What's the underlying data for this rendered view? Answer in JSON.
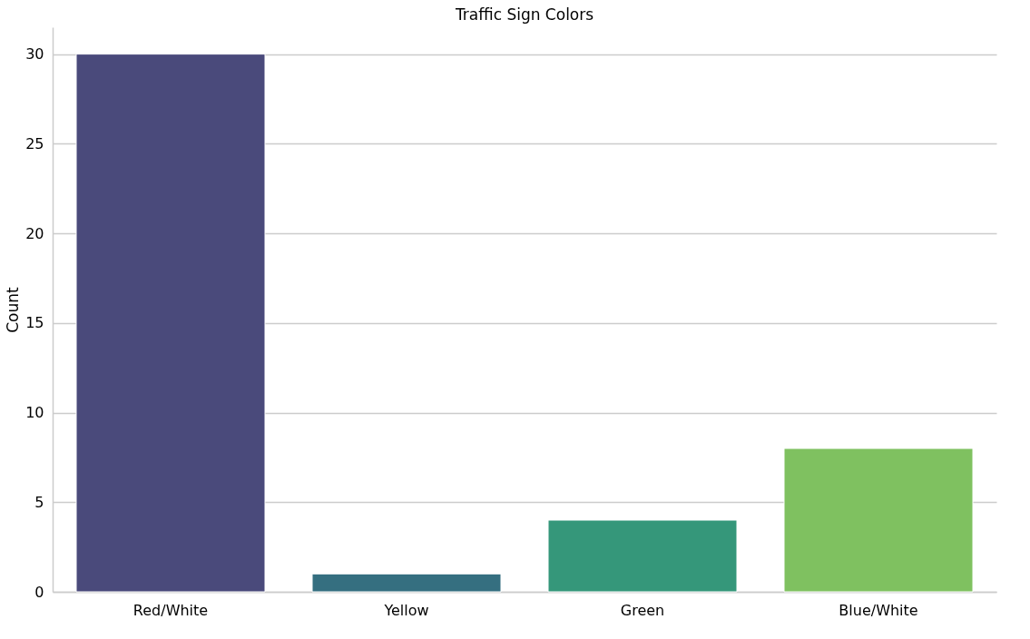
{
  "chart_data": {
    "type": "bar",
    "title": "Traffic Sign Colors",
    "ylabel": "Count",
    "categories": [
      "Red/White",
      "Yellow",
      "Green",
      "Blue/White"
    ],
    "values": [
      30,
      1,
      4,
      8
    ],
    "colors": [
      "#4a4a7b",
      "#356f80",
      "#35977a",
      "#7fc160"
    ],
    "ylim": [
      0,
      31.5
    ],
    "yticks": [
      0,
      5,
      10,
      15,
      20,
      25,
      30
    ],
    "grid": "y"
  }
}
